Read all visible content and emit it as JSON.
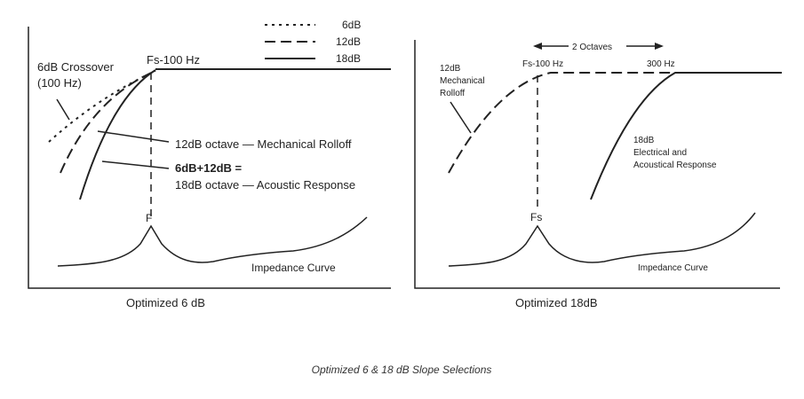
{
  "left_panel": {
    "legend": [
      "6dB",
      "12dB",
      "18dB"
    ],
    "crossover_label": [
      "6dB Crossover",
      "(100 Hz)"
    ],
    "fs_label": "Fs-100 Hz",
    "rolloff_label": "12dB octave — Mechanical Rolloff",
    "response_label": [
      "6dB+12dB =",
      "18dB octave — Acoustic Response"
    ],
    "peak_label": "F",
    "impedance_label": "Impedance Curve",
    "caption": "Optimized 6 dB"
  },
  "right_panel": {
    "span_label": "2 Octaves",
    "fs_label": "Fs-100 Hz",
    "upper_label": "300 Hz",
    "rolloff_label": [
      "12dB",
      "Mechanical",
      "Rolloff"
    ],
    "response_label": [
      "18dB",
      "Electrical and",
      "Acoustical Response"
    ],
    "peak_label": "Fs",
    "impedance_label": "Impedance Curve",
    "caption": "Optimized 18dB"
  },
  "title": "Optimized 6 & 18 dB Slope Selections"
}
